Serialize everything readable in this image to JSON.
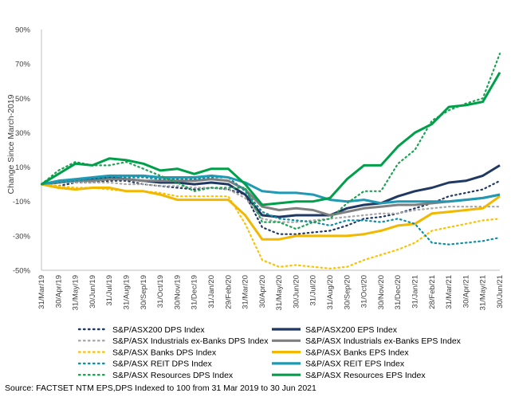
{
  "chart_data": {
    "type": "line",
    "title": "",
    "xlabel": "",
    "ylabel": "Change Since March-2019",
    "ylim": [
      -50,
      90
    ],
    "yticks": [
      -50,
      -30,
      -10,
      10,
      30,
      50,
      70,
      90
    ],
    "ytick_labels": [
      "-50%",
      "-30%",
      "-10%",
      "10%",
      "30%",
      "50%",
      "70%",
      "90%"
    ],
    "x": [
      "31/Mar/19",
      "30/Apr/19",
      "31/May/19",
      "30/Jun/19",
      "31/Jul/19",
      "31/Aug/19",
      "30/Sep/19",
      "31/Oct/19",
      "30/Nov/19",
      "31/Dec/19",
      "31/Jan/20",
      "29/Feb/20",
      "31/Mar/20",
      "30/Apr/20",
      "31/May/20",
      "30/Jun/20",
      "31/Jul/20",
      "31/Aug/20",
      "30/Sep/20",
      "31/Oct/20",
      "30/Nov/20",
      "31/Dec/20",
      "31/Jan/21",
      "28/Feb/21",
      "31/Mar/21",
      "30/Apr/21",
      "31/May/21",
      "30/Jun/21"
    ],
    "grid": false,
    "legend_position": "bottom",
    "series": [
      {
        "name": "S&P/ASX200 DPS Index",
        "color": "#1f3864",
        "style": "dotted",
        "values": [
          0,
          -1,
          1,
          1,
          2,
          2,
          0,
          -1,
          -2,
          -3,
          -2,
          -3,
          -6,
          -25,
          -29,
          -29,
          -28,
          -27,
          -24,
          -20,
          -19,
          -17,
          -14,
          -11,
          -7,
          -5,
          -3,
          2
        ]
      },
      {
        "name": "S&P/ASX200 EPS Index",
        "color": "#1f3864",
        "style": "solid",
        "values": [
          0,
          1,
          2,
          3,
          4,
          3,
          2,
          1,
          1,
          0,
          1,
          0,
          -6,
          -18,
          -19,
          -18,
          -18,
          -18,
          -14,
          -12,
          -11,
          -7,
          -4,
          -2,
          1,
          2,
          5,
          11
        ]
      },
      {
        "name": "S&P/ASX Industrials ex-Banks DPS Index",
        "color": "#a6a6a6",
        "style": "dotted",
        "values": [
          0,
          1,
          1,
          1,
          1,
          0,
          0,
          -1,
          -1,
          -2,
          -2,
          -3,
          -8,
          -20,
          -22,
          -22,
          -21,
          -20,
          -19,
          -18,
          -17,
          -17,
          -15,
          -14,
          -13,
          -13,
          -13,
          -13
        ]
      },
      {
        "name": "S&P/ASX Industrials ex-Banks EPS Index",
        "color": "#7f7f7f",
        "style": "solid",
        "values": [
          0,
          1,
          2,
          2,
          3,
          3,
          2,
          2,
          2,
          2,
          3,
          2,
          -3,
          -13,
          -15,
          -14,
          -15,
          -18,
          -16,
          -14,
          -13,
          -12,
          -12,
          -11,
          -10,
          -9,
          -8,
          -6
        ]
      },
      {
        "name": "S&P/ASX Banks DPS Index",
        "color": "#ffc000",
        "style": "dotted",
        "values": [
          0,
          -1,
          -2,
          -2,
          -3,
          -4,
          -4,
          -5,
          -7,
          -7,
          -7,
          -7,
          -23,
          -44,
          -48,
          -47,
          -48,
          -49,
          -48,
          -44,
          -41,
          -38,
          -34,
          -27,
          -25,
          -23,
          -21,
          -20
        ]
      },
      {
        "name": "S&P/ASX Banks EPS Index",
        "color": "#f2b800",
        "style": "solid",
        "values": [
          0,
          -2,
          -3,
          -2,
          -2,
          -4,
          -4,
          -6,
          -9,
          -9,
          -9,
          -9,
          -18,
          -32,
          -32,
          -30,
          -30,
          -30,
          -30,
          -29,
          -27,
          -24,
          -23,
          -17,
          -16,
          -15,
          -14,
          -7
        ]
      },
      {
        "name": "S&P/ASX REIT DPS Index",
        "color": "#0e8fa6",
        "style": "dotted",
        "values": [
          0,
          1,
          2,
          3,
          4,
          4,
          4,
          3,
          3,
          3,
          4,
          4,
          -4,
          -16,
          -20,
          -21,
          -22,
          -24,
          -21,
          -21,
          -22,
          -20,
          -23,
          -34,
          -35,
          -34,
          -33,
          -31
        ]
      },
      {
        "name": "S&P/ASX REIT EPS Index",
        "color": "#1f99b4",
        "style": "solid",
        "values": [
          0,
          2,
          3,
          4,
          5,
          5,
          5,
          4,
          4,
          4,
          5,
          4,
          1,
          -4,
          -5,
          -5,
          -6,
          -9,
          -10,
          -9,
          -11,
          -10,
          -10,
          -10,
          -10,
          -9,
          -8,
          -6
        ]
      },
      {
        "name": "S&P/ASX Resources DPS Index",
        "color": "#1aa352",
        "style": "dotted",
        "values": [
          0,
          8,
          13,
          11,
          11,
          13,
          9,
          5,
          1,
          -4,
          -2,
          -2,
          -2,
          -22,
          -22,
          -26,
          -22,
          -20,
          -11,
          -4,
          -4,
          12,
          20,
          37,
          43,
          47,
          50,
          76
        ]
      },
      {
        "name": "S&P/ASX Resources EPS Index",
        "color": "#00a04a",
        "style": "solid",
        "values": [
          0,
          6,
          12,
          11,
          15,
          14,
          12,
          8,
          9,
          6,
          9,
          9,
          0,
          -12,
          -11,
          -10,
          -10,
          -8,
          3,
          11,
          11,
          22,
          30,
          35,
          45,
          46,
          48,
          65
        ]
      }
    ],
    "source_note": "Source: FACTSET NTM EPS,DPS Indexed to 100 from 31 Mar 2019  to 30 Jun 2021"
  }
}
